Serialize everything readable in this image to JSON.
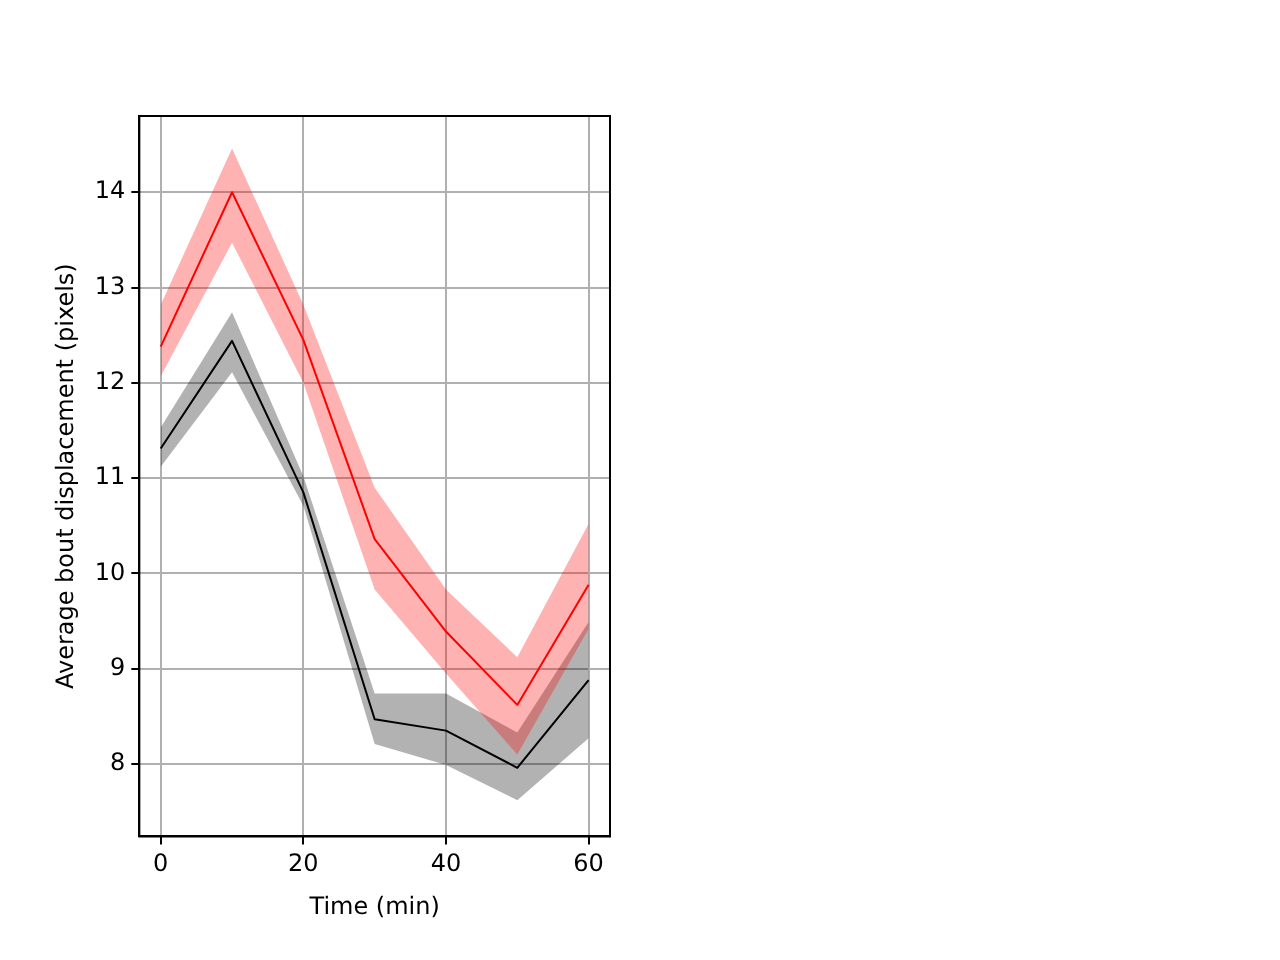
{
  "chart_data": {
    "type": "line",
    "xlabel": "Time (min)",
    "ylabel": "Average bout displacement (pixels)",
    "x": [
      0,
      10,
      20,
      30,
      40,
      50,
      60
    ],
    "series": [
      {
        "color": "#ff0000",
        "values": [
          12.38,
          14.0,
          12.45,
          10.36,
          9.39,
          8.62,
          9.88
        ],
        "upper": [
          12.82,
          14.46,
          12.82,
          10.9,
          9.83,
          9.12,
          10.52
        ],
        "lower": [
          12.07,
          13.47,
          12.0,
          9.83,
          8.95,
          8.1,
          9.42
        ]
      },
      {
        "color": "#000000",
        "values": [
          11.31,
          12.44,
          10.85,
          8.47,
          8.35,
          7.96,
          8.88
        ],
        "upper": [
          11.53,
          12.74,
          11.02,
          8.74,
          8.74,
          8.33,
          9.49
        ],
        "lower": [
          11.12,
          12.11,
          10.71,
          8.21,
          7.99,
          7.62,
          8.27
        ]
      }
    ],
    "xlim": [
      -3,
      63
    ],
    "ylim": [
      7.24,
      14.8
    ],
    "xticks": [
      0,
      20,
      40,
      60
    ],
    "yticks": [
      8,
      9,
      10,
      11,
      12,
      13,
      14
    ],
    "grid": true,
    "legend": false,
    "marker": "none",
    "line_style": "solid"
  }
}
